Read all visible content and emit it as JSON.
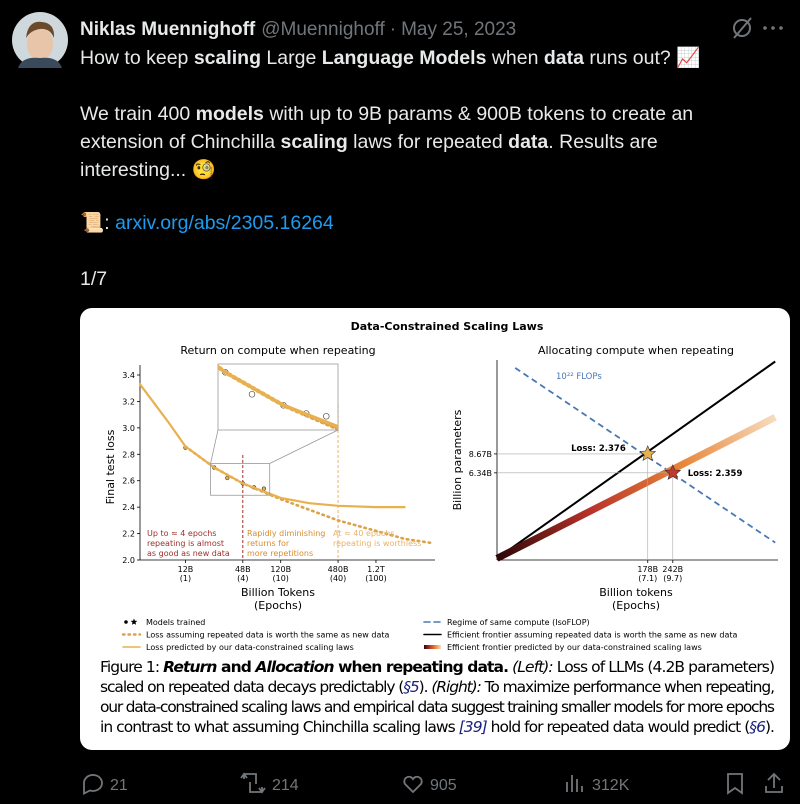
{
  "header": {
    "name": "Niklas Muennighoff",
    "handle": "@Muennighoff",
    "separator": "·",
    "date": "May 25, 2023"
  },
  "tweet": {
    "lines": [
      [
        {
          "text": "How to keep "
        },
        {
          "text": "scaling",
          "style": "bold"
        },
        {
          "text": " Large "
        },
        {
          "text": "Language Models",
          "style": "bold"
        },
        {
          "text": " when "
        },
        {
          "text": "data",
          "style": "bold"
        },
        {
          "text": " runs out? 📈"
        }
      ],
      [
        {
          "text": "We train 400 "
        },
        {
          "text": "models",
          "style": "bold"
        },
        {
          "text": " with up to 9B params & 900B tokens to create an"
        }
      ],
      [
        {
          "text": "extension of Chinchilla "
        },
        {
          "text": "scaling",
          "style": "bold"
        },
        {
          "text": " laws for repeated "
        },
        {
          "text": "data",
          "style": "bold"
        },
        {
          "text": ". Results are"
        }
      ],
      [
        {
          "text": "interesting... 🧐"
        }
      ],
      [
        {
          "text": "📜: "
        },
        {
          "text": "arxiv.org/abs/2305.16264",
          "style": "link"
        }
      ],
      [
        {
          "text": "1/7"
        }
      ]
    ]
  },
  "figure": {
    "title": "Data-Constrained Scaling Laws",
    "charts": [
      {
        "type": "line",
        "title": "Return on compute when repeating",
        "ylabel": "Final test loss",
        "xlabel": "Billion Tokens",
        "xlabel_sub": "(Epochs)",
        "xscale": "log",
        "xlim": [
          4,
          5000
        ],
        "ylim": [
          2.0,
          3.4
        ],
        "yticks": [
          {
            "value": 2,
            "label": "2.0"
          },
          2.2,
          2.4,
          2.6,
          2.8,
          {
            "value": 3,
            "label": "3.0"
          },
          3.2,
          3.4
        ],
        "xticks": [
          {
            "value": 12,
            "label": "12B",
            "sub": "(1)"
          },
          {
            "value": 48,
            "label": "48B",
            "sub": "(4)"
          },
          {
            "value": 120,
            "label": "120B",
            "sub": "(10)"
          },
          {
            "value": 480,
            "label": "480B",
            "sub": "(40)"
          },
          {
            "value": 1200,
            "label": "1.2T",
            "sub": "(100)"
          }
        ],
        "series": [
          {
            "name": "Models trained",
            "kind": "scatter",
            "color": "#e8b04f",
            "x": [
              12,
              24,
              33,
              48,
              63,
              80
            ],
            "y": [
              2.85,
              2.7,
              2.62,
              2.58,
              2.55,
              2.54
            ]
          },
          {
            "name": "Loss assuming repeated data is worth the same as new data",
            "kind": "line",
            "style": "dotted",
            "color": "#dba24a",
            "x": [
              12,
              24,
              48,
              120,
              240,
              480,
              1200,
              2400,
              4500
            ],
            "y": [
              2.86,
              2.7,
              2.58,
              2.46,
              2.38,
              2.3,
              2.22,
              2.16,
              2.13
            ]
          },
          {
            "name": "Loss predicted by our data-constrained scaling laws",
            "kind": "line",
            "style": "solid",
            "color": "#e8b04f",
            "x": [
              4,
              6,
              8,
              12,
              24,
              48,
              120,
              240,
              480,
              1200,
              2400
            ],
            "y": [
              3.33,
              3.16,
              3.04,
              2.86,
              2.7,
              2.58,
              2.47,
              2.43,
              2.41,
              2.4,
              2.4
            ]
          }
        ],
        "inset": {
          "xlim": [
            22,
            92
          ],
          "ylim": [
            2.49,
            2.73
          ]
        },
        "vlines": [
          {
            "value": 48,
            "color": "#a0302a"
          },
          {
            "value": 480,
            "color": "#e8b36a"
          }
        ],
        "annotations": [
          {
            "lines": [
              "Up to ≈ 4 epochs",
              "repeating is almost",
              "as good as new data"
            ],
            "color": "#a0302a"
          },
          {
            "lines": [
              "Rapidly diminishing",
              "returns for",
              "more repetitions"
            ],
            "color": "#d98c2e"
          },
          {
            "lines": [
              "At ≈ 40 epochs,",
              "repeating is worthless"
            ],
            "color": "#e8b36a"
          }
        ]
      },
      {
        "type": "line",
        "title": "Allocating compute when repeating",
        "ylabel": "Billion parameters",
        "xlabel": "Billion tokens",
        "xlabel_sub": "(Epochs)",
        "xscale": "log",
        "yscale": "log",
        "xlim": [
          28,
          880
        ],
        "ylim": [
          1.5,
          41
        ],
        "yticks": [
          {
            "value": 6.34,
            "label": "6.34B"
          },
          {
            "value": 8.67,
            "label": "8.67B"
          }
        ],
        "xticks": [
          {
            "value": 178,
            "label": "178B",
            "sub": "(7.1)"
          },
          {
            "value": 242,
            "label": "242B",
            "sub": "(9.7)"
          }
        ],
        "annotation": "10²² FLOPs",
        "annotation_color": "#4a78b5",
        "series": [
          {
            "name": "Regime of same compute (IsoFLOP)",
            "kind": "line",
            "style": "dashed",
            "color": "#4a78b5",
            "x": [
              35,
              850
            ],
            "y": [
              36,
              2
            ]
          },
          {
            "name": "Efficient frontier assuming repeated data is worth the same as new data",
            "kind": "line",
            "style": "solid",
            "color": "#000000",
            "x": [
              28,
              850
            ],
            "y": [
              1.54,
              40
            ]
          },
          {
            "name": "Efficient frontier predicted by our data-constrained scaling laws",
            "kind": "line",
            "style": "gradient",
            "colors": [
              "#2a0606",
              "#b8322a",
              "#e8873a",
              "#f7dcc0"
            ],
            "x": [
              28,
              850
            ],
            "y": [
              1.54,
              15.9
            ]
          },
          {
            "kind": "stars",
            "colors": [
              "#e8b04f",
              "#c0392b"
            ],
            "x": [
              178,
              242
            ],
            "y": [
              8.67,
              6.34
            ],
            "labels": [
              "Loss: 2.376",
              "Loss: 2.359"
            ]
          }
        ]
      }
    ],
    "caption": [
      [
        {
          "text": "Figure 1: "
        },
        {
          "text": "Return",
          "style": "bi"
        },
        {
          "text": " and ",
          "style": "b"
        },
        {
          "text": "Allocation",
          "style": "bi"
        },
        {
          "text": " when repeating data.",
          "style": "b"
        },
        {
          "text": " (Left):",
          "style": "i"
        },
        {
          "text": " Loss of LLMs (4.2B parameters)"
        }
      ],
      [
        {
          "text": "scaled on repeated data decays predictably ("
        },
        {
          "text": "§5",
          "style": "link"
        },
        {
          "text": "). "
        },
        {
          "text": "(Right):",
          "style": "i"
        },
        {
          "text": " To maximize performance when repeating,"
        }
      ],
      [
        {
          "text": "our data-constrained scaling laws and empirical data suggest training smaller models for more epochs"
        }
      ],
      [
        {
          "text": "in contrast to what assuming Chinchilla scaling laws "
        },
        {
          "text": "[39]",
          "style": "link"
        },
        {
          "text": " hold for repeated data would predict ("
        },
        {
          "text": "§6",
          "style": "link"
        },
        {
          "text": ")."
        }
      ]
    ]
  },
  "actions": {
    "reply": "21",
    "retweet": "214",
    "like": "905",
    "views": "312K"
  }
}
